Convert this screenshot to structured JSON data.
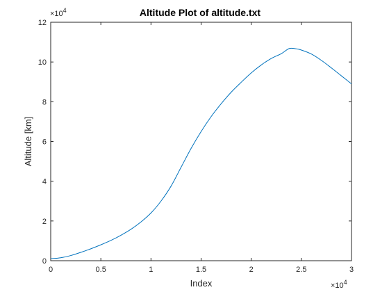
{
  "chart_data": {
    "type": "line",
    "title": "Altitude Plot of altitude.txt",
    "xlabel": "Index",
    "ylabel": "Altitude [km]",
    "xlim": [
      0,
      30000
    ],
    "ylim": [
      0,
      120000
    ],
    "x_ticks": [
      0,
      5000,
      10000,
      15000,
      20000,
      25000,
      30000
    ],
    "x_tick_labels": [
      "0",
      "0.5",
      "1",
      "1.5",
      "2",
      "2.5",
      "3"
    ],
    "y_ticks": [
      0,
      20000,
      40000,
      60000,
      80000,
      100000,
      120000
    ],
    "y_tick_labels": [
      "0",
      "2",
      "4",
      "6",
      "8",
      "10",
      "12"
    ],
    "x_exponent_label": "×10",
    "x_exponent_power": "4",
    "y_exponent_label": "×10",
    "y_exponent_power": "4",
    "grid": false,
    "line_color": "#0072bd",
    "series": [
      {
        "x": [
          0,
          1000,
          2000,
          3000,
          4000,
          5000,
          6000,
          7000,
          8000,
          9000,
          10000,
          11000,
          12000,
          13000,
          14000,
          15000,
          16000,
          17000,
          18000,
          19000,
          20000,
          21000,
          22000,
          23000,
          23800,
          24500,
          25000,
          26000,
          27000,
          28000,
          29000,
          30000
        ],
        "y": [
          1000,
          1500,
          2600,
          4200,
          6000,
          8000,
          10200,
          12800,
          15800,
          19500,
          24000,
          30000,
          37500,
          47000,
          56500,
          65000,
          72500,
          79000,
          84800,
          89800,
          94500,
          98500,
          101800,
          104200,
          106800,
          106600,
          106000,
          104000,
          100800,
          97000,
          93000,
          89000
        ]
      }
    ]
  }
}
